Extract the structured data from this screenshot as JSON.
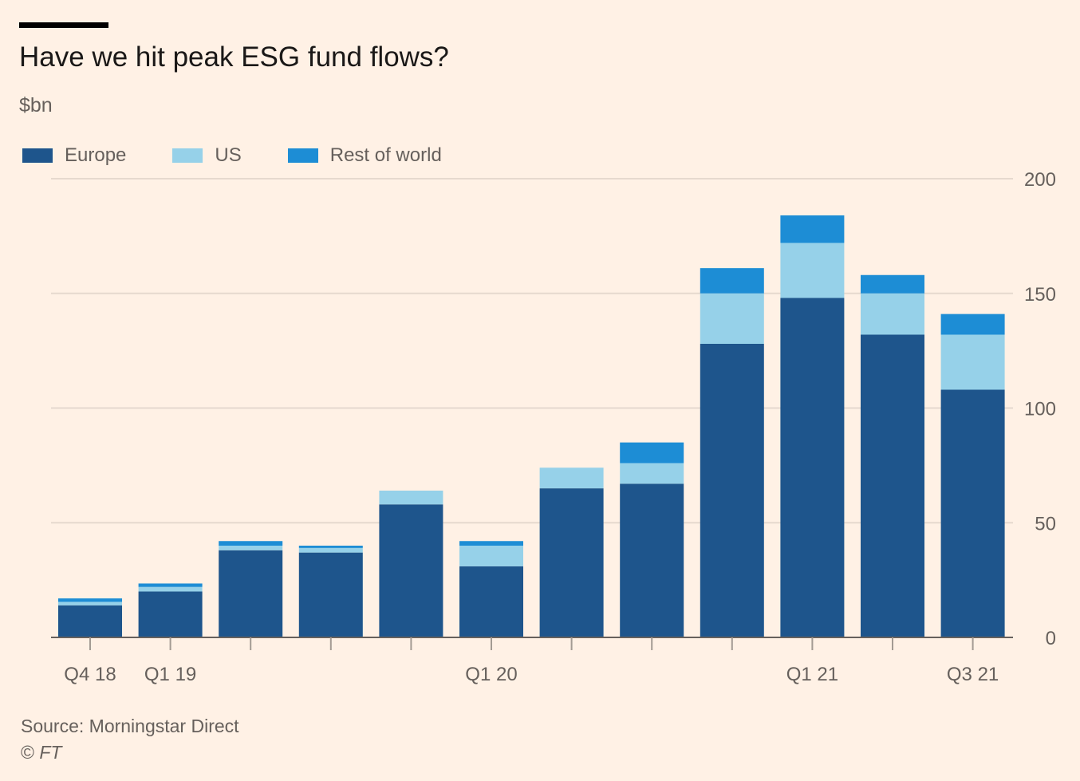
{
  "header": {
    "title": "Have we hit peak ESG fund flows?",
    "subtitle": "$bn"
  },
  "legend": [
    {
      "label": "Europe",
      "color": "#1e558c"
    },
    {
      "label": "US",
      "color": "#96d1e9"
    },
    {
      "label": "Rest of world",
      "color": "#1d8dd5"
    }
  ],
  "footer": {
    "source": "Source: Morningstar Direct",
    "copyright_symbol": "©",
    "copyright_name": "FT"
  },
  "chart_data": {
    "type": "bar",
    "stacked": true,
    "title": "Have we hit peak ESG fund flows?",
    "ylabel": "$bn",
    "xlabel": "",
    "ylim": [
      0,
      200
    ],
    "yticks": [
      0,
      50,
      100,
      150,
      200
    ],
    "y_axis_side": "right",
    "grid": true,
    "legend_position": "top-left",
    "categories": [
      "Q4 18",
      "Q1 19",
      "Q2 19",
      "Q3 19",
      "Q4 19",
      "Q1 20",
      "Q2 20",
      "Q3 20",
      "Q4 20",
      "Q1 21",
      "Q2 21",
      "Q3 21"
    ],
    "category_labels": [
      "Q4 18",
      "Q1 19",
      "",
      "",
      "",
      "Q1 20",
      "",
      "",
      "",
      "Q1 21",
      "",
      "Q3 21"
    ],
    "series": [
      {
        "name": "Europe",
        "color": "#1e558c",
        "values": [
          14,
          20,
          38,
          37,
          58,
          31,
          65,
          67,
          128,
          148,
          132,
          108
        ]
      },
      {
        "name": "US",
        "color": "#96d1e9",
        "values": [
          1.5,
          2,
          2,
          2,
          6,
          9,
          9,
          9,
          22,
          24,
          18,
          24
        ]
      },
      {
        "name": "Rest of world",
        "color": "#1d8dd5",
        "values": [
          1.5,
          1.5,
          2,
          1,
          0,
          2,
          0,
          9,
          11,
          12,
          8,
          9
        ]
      }
    ]
  }
}
